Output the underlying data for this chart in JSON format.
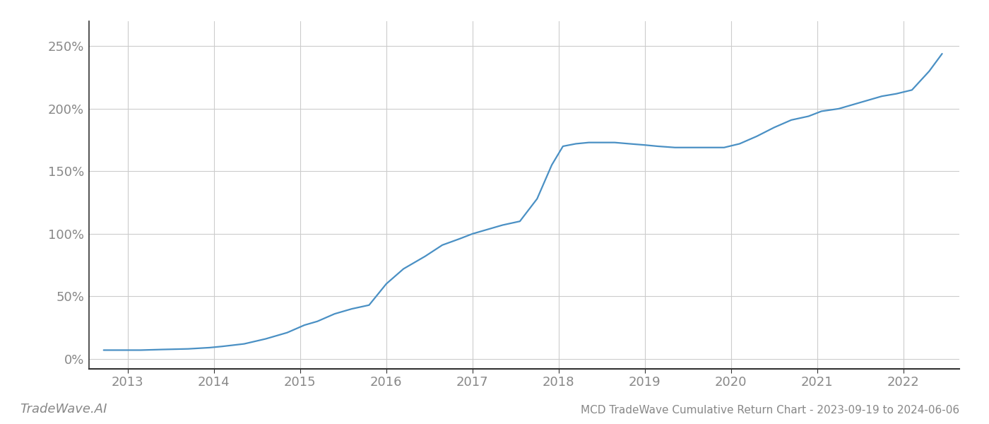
{
  "title": "MCD TradeWave Cumulative Return Chart - 2023-09-19 to 2024-06-06",
  "watermark": "TradeWave.AI",
  "line_color": "#4a90c4",
  "background_color": "#ffffff",
  "grid_color": "#cccccc",
  "x_years": [
    2013,
    2014,
    2015,
    2016,
    2017,
    2018,
    2019,
    2020,
    2021,
    2022
  ],
  "data_points": {
    "x": [
      2012.72,
      2013.0,
      2013.15,
      2013.4,
      2013.7,
      2013.95,
      2014.1,
      2014.35,
      2014.6,
      2014.85,
      2015.05,
      2015.2,
      2015.4,
      2015.6,
      2015.8,
      2016.0,
      2016.2,
      2016.45,
      2016.65,
      2016.85,
      2017.0,
      2017.15,
      2017.35,
      2017.55,
      2017.75,
      2017.92,
      2018.05,
      2018.2,
      2018.35,
      2018.5,
      2018.65,
      2018.82,
      2019.0,
      2019.15,
      2019.35,
      2019.55,
      2019.75,
      2019.92,
      2020.1,
      2020.3,
      2020.5,
      2020.7,
      2020.9,
      2021.05,
      2021.25,
      2021.5,
      2021.75,
      2021.92,
      2022.1,
      2022.3,
      2022.45
    ],
    "y": [
      7,
      7,
      7,
      7.5,
      8,
      9,
      10,
      12,
      16,
      21,
      27,
      30,
      36,
      40,
      43,
      60,
      72,
      82,
      91,
      96,
      100,
      103,
      107,
      110,
      128,
      155,
      170,
      172,
      173,
      173,
      173,
      172,
      171,
      170,
      169,
      169,
      169,
      169,
      172,
      178,
      185,
      191,
      194,
      198,
      200,
      205,
      210,
      212,
      215,
      230,
      244
    ]
  },
  "xlim_min": 2012.55,
  "xlim_max": 2022.65,
  "ylim_min": -8,
  "ylim_max": 270,
  "yticks": [
    0,
    50,
    100,
    150,
    200,
    250
  ],
  "ytick_labels": [
    "0%",
    "50%",
    "100%",
    "150%",
    "200%",
    "250%"
  ],
  "axis_label_color": "#888888",
  "spine_color": "#333333",
  "title_fontsize": 11,
  "watermark_fontsize": 13,
  "tick_fontsize": 13,
  "line_width": 1.6
}
